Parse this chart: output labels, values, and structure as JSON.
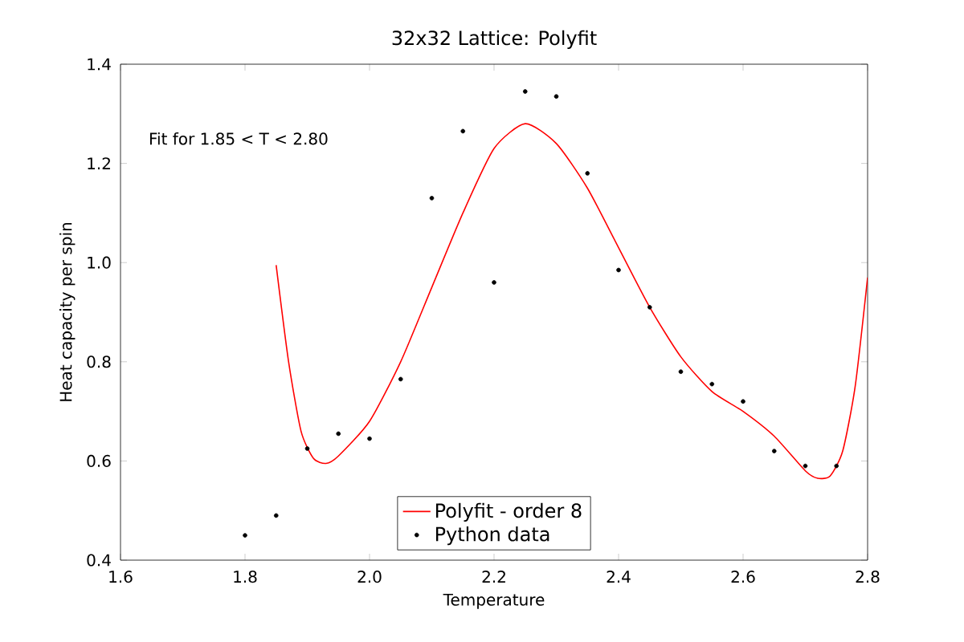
{
  "chart_data": {
    "type": "line",
    "title": "32x32 Lattice: Polyfit",
    "xlabel": "Temperature",
    "ylabel": "Heat capacity per spin",
    "xlim": [
      1.6,
      2.8
    ],
    "ylim": [
      0.4,
      1.4
    ],
    "xticks": [
      {
        "value": 1.6,
        "label": "1.6"
      },
      {
        "value": 1.8,
        "label": "1.8"
      },
      {
        "value": 2.0,
        "label": "2.0"
      },
      {
        "value": 2.2,
        "label": "2.2"
      },
      {
        "value": 2.4,
        "label": "2.4"
      },
      {
        "value": 2.6,
        "label": "2.6"
      },
      {
        "value": 2.8,
        "label": "2.8"
      }
    ],
    "yticks": [
      {
        "value": 0.4,
        "label": "0.4"
      },
      {
        "value": 0.6,
        "label": "0.6"
      },
      {
        "value": 0.8,
        "label": "0.8"
      },
      {
        "value": 1.0,
        "label": "1.0"
      },
      {
        "value": 1.2,
        "label": "1.2"
      },
      {
        "value": 1.4,
        "label": "1.4"
      }
    ],
    "grid": false,
    "legend": "bottom",
    "annotations": [
      "Fit for 1.85 < T < 2.80"
    ],
    "series": [
      {
        "name": "Polyfit - order 8",
        "color": "#ff0000",
        "marker": "none",
        "x": [
          1.85,
          1.87,
          1.89,
          1.91,
          1.93,
          1.95,
          2.0,
          2.05,
          2.1,
          2.15,
          2.2,
          2.25,
          2.3,
          2.35,
          2.4,
          2.45,
          2.5,
          2.55,
          2.6,
          2.65,
          2.7,
          2.72,
          2.74,
          2.76,
          2.78,
          2.8
        ],
        "values": [
          0.995,
          0.8,
          0.66,
          0.605,
          0.595,
          0.61,
          0.68,
          0.8,
          0.95,
          1.1,
          1.23,
          1.28,
          1.24,
          1.15,
          1.03,
          0.91,
          0.81,
          0.74,
          0.7,
          0.65,
          0.58,
          0.565,
          0.57,
          0.62,
          0.75,
          0.97
        ]
      },
      {
        "name": "Python data",
        "type": "scatter",
        "color": "#000000",
        "marker": "circle",
        "x": [
          1.8,
          1.85,
          1.9,
          1.95,
          2.0,
          2.05,
          2.1,
          2.15,
          2.2,
          2.25,
          2.3,
          2.35,
          2.4,
          2.45,
          2.5,
          2.55,
          2.6,
          2.65,
          2.7,
          2.75
        ],
        "values": [
          0.45,
          0.49,
          0.625,
          0.655,
          0.645,
          0.765,
          1.13,
          1.265,
          0.96,
          1.345,
          1.335,
          1.18,
          0.985,
          0.91,
          0.78,
          0.755,
          0.72,
          0.62,
          0.59,
          0.59
        ]
      }
    ]
  }
}
